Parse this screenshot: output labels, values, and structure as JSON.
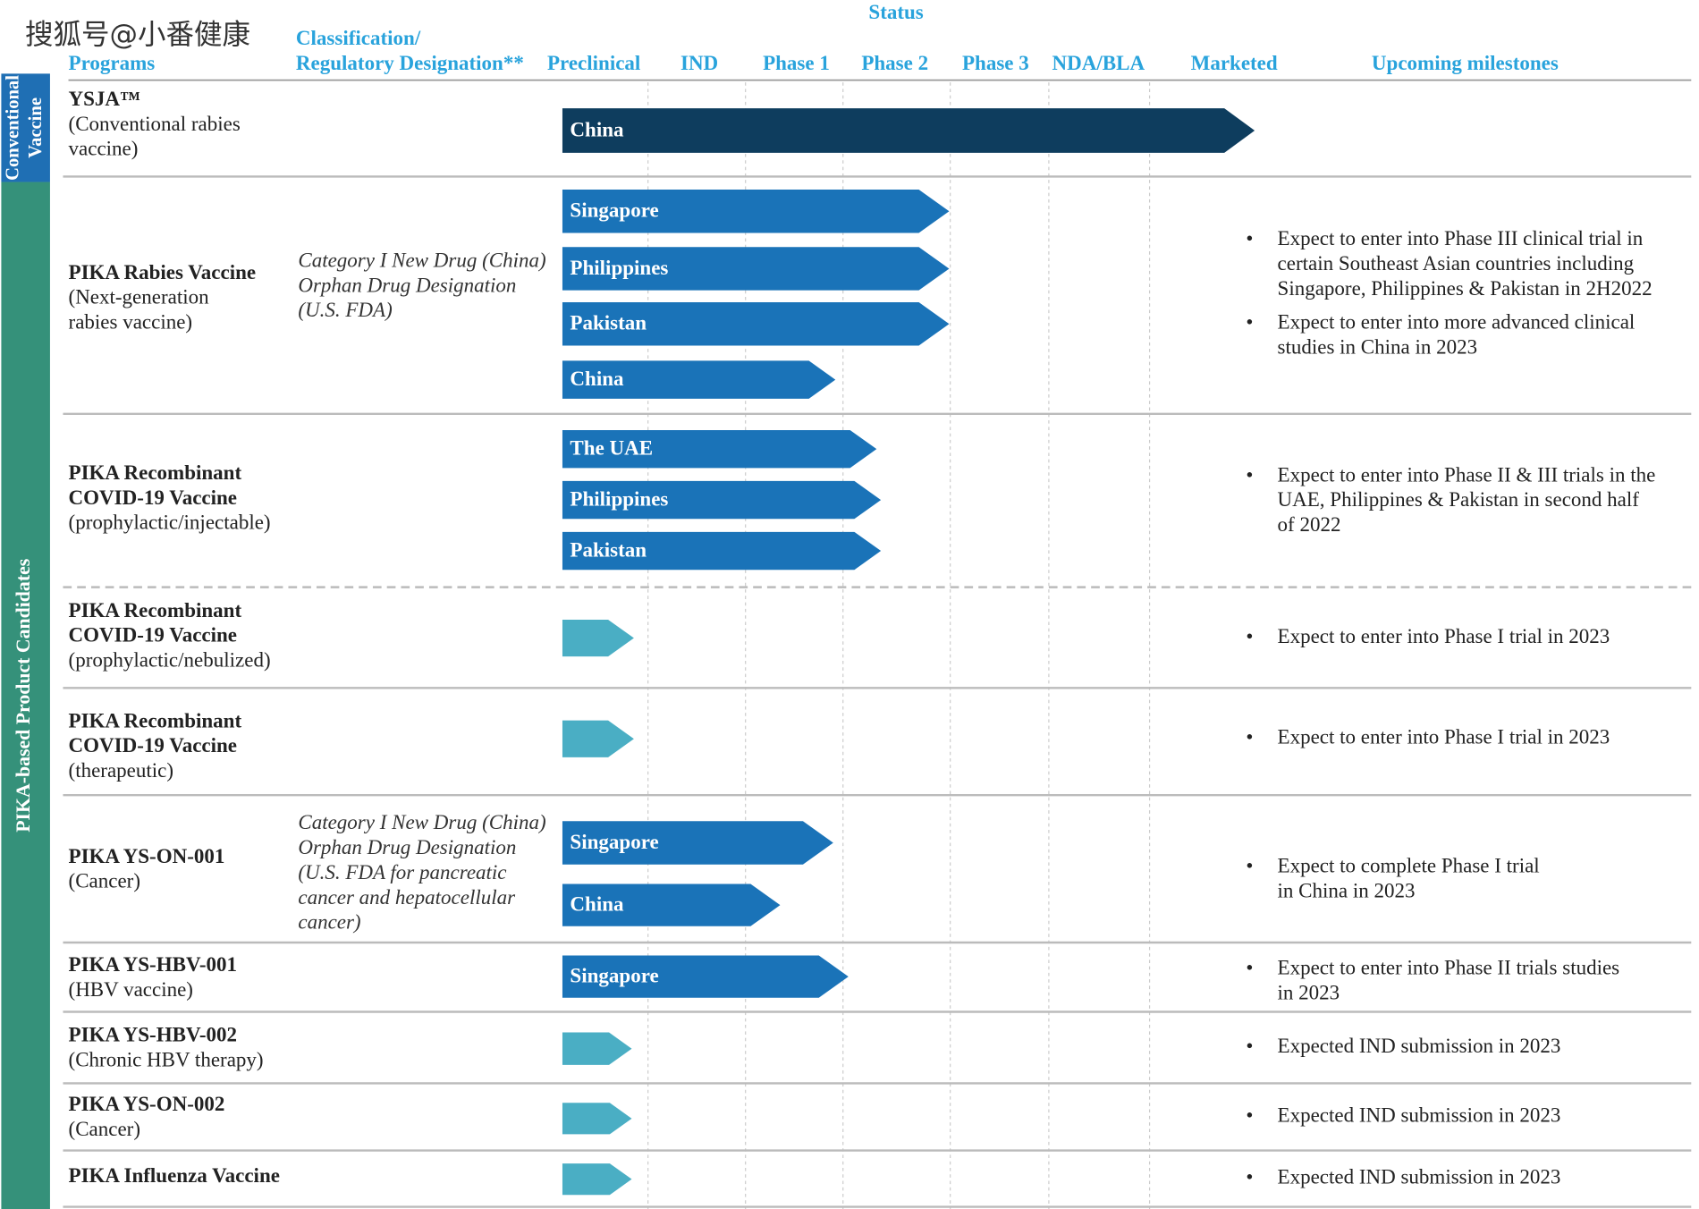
{
  "watermark": "搜狐号@小番健康",
  "header": {
    "status": "Status",
    "programs": "Programs",
    "classification": [
      "Classification/",
      "Regulatory Designation**"
    ],
    "stages": [
      "Preclinical",
      "IND",
      "Phase 1",
      "Phase 2",
      "Phase 3",
      "NDA/BLA",
      "Marketed"
    ],
    "milestones": "Upcoming milestones"
  },
  "groups": [
    {
      "label": [
        "Conventional",
        "Vaccine"
      ]
    },
    {
      "label": [
        "PIKA-based Product Candidates"
      ]
    }
  ],
  "rows": [
    {
      "name": "YSJA™",
      "description": [
        "(Conventional rabies",
        "vaccine)"
      ],
      "bars": [
        "China"
      ]
    },
    {
      "name": "PIKA Rabies Vaccine",
      "description": [
        "(Next-generation",
        "rabies vaccine)"
      ],
      "classification": [
        "Category I New Drug (China)",
        "Orphan Drug Designation",
        "(U.S. FDA)"
      ],
      "bars": [
        "Singapore",
        "Philippines",
        "Pakistan",
        "China"
      ],
      "milestones": [
        [
          "Expect to enter into Phase III clinical trial in",
          "certain Southeast Asian countries including",
          "Singapore, Philippines &  Pakistan in 2H2022"
        ],
        [
          "Expect to enter into more advanced clinical",
          "studies in China in 2023"
        ]
      ]
    },
    {
      "name": "PIKA Recombinant",
      "name2": "COVID-19 Vaccine",
      "description": [
        "(prophylactic/injectable)"
      ],
      "bars": [
        "The UAE",
        "Philippines",
        "Pakistan"
      ],
      "milestones": [
        [
          "Expect to enter into Phase II & III trials in the",
          "UAE, Philippines & Pakistan in second half",
          "of 2022"
        ]
      ]
    },
    {
      "name": "PIKA Recombinant",
      "name2": "COVID-19 Vaccine",
      "description": [
        "(prophylactic/nebulized)"
      ],
      "milestones": [
        [
          "Expect to enter into Phase I trial in 2023"
        ]
      ]
    },
    {
      "name": "PIKA Recombinant",
      "name2": "COVID-19 Vaccine",
      "description": [
        "(therapeutic)"
      ],
      "milestones": [
        [
          "Expect to enter into Phase I trial in 2023"
        ]
      ]
    },
    {
      "name": "PIKA YS-ON-001",
      "description": [
        "(Cancer)"
      ],
      "classification": [
        "Category I New Drug (China)",
        "Orphan Drug Designation",
        "(U.S. FDA for pancreatic",
        "cancer and hepatocellular",
        "cancer)"
      ],
      "bars": [
        "Singapore",
        "China"
      ],
      "milestones": [
        [
          "Expect to complete Phase I trial",
          "in China in 2023"
        ]
      ]
    },
    {
      "name": "PIKA YS-HBV-001",
      "description": [
        "(HBV vaccine)"
      ],
      "bars": [
        "Singapore"
      ],
      "milestones": [
        [
          "Expect to enter into Phase II trials studies",
          "in 2023"
        ]
      ]
    },
    {
      "name": "PIKA YS-HBV-002",
      "description": [
        "(Chronic HBV therapy)"
      ],
      "milestones": [
        [
          "Expected IND submission in 2023"
        ]
      ]
    },
    {
      "name": "PIKA YS-ON-002",
      "description": [
        "(Cancer)"
      ],
      "milestones": [
        [
          "Expected IND submission in 2023"
        ]
      ]
    },
    {
      "name": "PIKA Influenza Vaccine",
      "milestones": [
        [
          "Expected IND submission in 2023"
        ]
      ]
    }
  ]
}
